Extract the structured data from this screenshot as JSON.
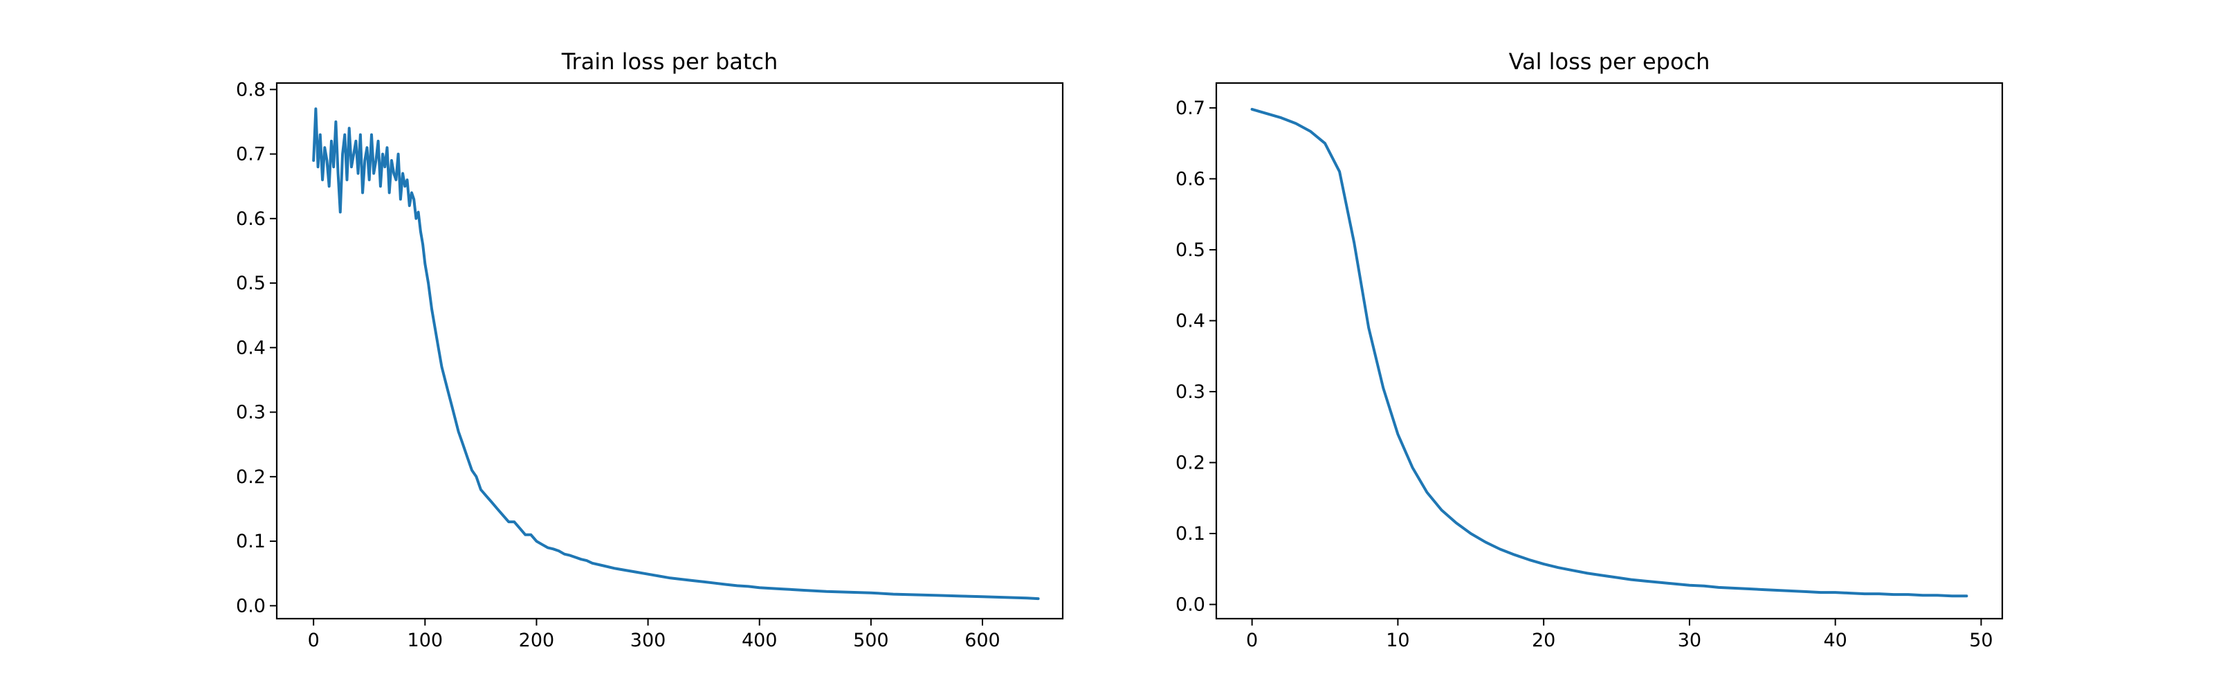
{
  "colors": {
    "series": "#1f77b4",
    "axes": "#000000",
    "background": "#ffffff"
  },
  "chart_data": [
    {
      "type": "line",
      "title": "Train loss per batch",
      "xlabel": "",
      "ylabel": "",
      "xlim": [
        -33,
        672
      ],
      "ylim": [
        -0.02,
        0.81
      ],
      "xticks": [
        0,
        100,
        200,
        300,
        400,
        500,
        600
      ],
      "yticks": [
        0.0,
        0.1,
        0.2,
        0.3,
        0.4,
        0.5,
        0.6,
        0.7,
        0.8
      ],
      "ytick_format": "1",
      "grid": false,
      "series": [
        {
          "x": [
            0,
            2,
            4,
            6,
            8,
            10,
            12,
            14,
            16,
            18,
            20,
            22,
            24,
            26,
            28,
            30,
            32,
            34,
            36,
            38,
            40,
            42,
            44,
            46,
            48,
            50,
            52,
            54,
            56,
            58,
            60,
            62,
            64,
            66,
            68,
            70,
            72,
            74,
            76,
            78,
            80,
            82,
            84,
            86,
            88,
            90,
            92,
            94,
            96,
            98,
            100,
            103,
            106,
            109,
            112,
            115,
            118,
            121,
            124,
            127,
            130,
            134,
            138,
            142,
            146,
            150,
            155,
            160,
            165,
            170,
            175,
            180,
            185,
            190,
            195,
            200,
            205,
            210,
            215,
            220,
            225,
            230,
            235,
            240,
            245,
            250,
            260,
            270,
            280,
            290,
            300,
            310,
            320,
            330,
            340,
            350,
            360,
            370,
            380,
            390,
            400,
            420,
            440,
            460,
            480,
            500,
            520,
            540,
            560,
            580,
            600,
            620,
            640,
            650
          ],
          "y": [
            0.69,
            0.77,
            0.68,
            0.73,
            0.66,
            0.71,
            0.69,
            0.65,
            0.72,
            0.68,
            0.75,
            0.67,
            0.61,
            0.7,
            0.73,
            0.66,
            0.74,
            0.68,
            0.7,
            0.72,
            0.67,
            0.73,
            0.64,
            0.69,
            0.71,
            0.66,
            0.73,
            0.67,
            0.69,
            0.72,
            0.65,
            0.7,
            0.68,
            0.71,
            0.64,
            0.69,
            0.67,
            0.66,
            0.7,
            0.63,
            0.67,
            0.65,
            0.66,
            0.62,
            0.64,
            0.63,
            0.6,
            0.61,
            0.58,
            0.56,
            0.53,
            0.5,
            0.46,
            0.43,
            0.4,
            0.37,
            0.35,
            0.33,
            0.31,
            0.29,
            0.27,
            0.25,
            0.23,
            0.21,
            0.2,
            0.18,
            0.17,
            0.16,
            0.15,
            0.14,
            0.13,
            0.13,
            0.12,
            0.11,
            0.11,
            0.1,
            0.095,
            0.09,
            0.088,
            0.085,
            0.08,
            0.078,
            0.075,
            0.072,
            0.07,
            0.066,
            0.062,
            0.058,
            0.055,
            0.052,
            0.049,
            0.046,
            0.043,
            0.041,
            0.039,
            0.037,
            0.035,
            0.033,
            0.031,
            0.03,
            0.028,
            0.026,
            0.024,
            0.022,
            0.021,
            0.02,
            0.018,
            0.017,
            0.016,
            0.015,
            0.014,
            0.013,
            0.012,
            0.011
          ]
        }
      ]
    },
    {
      "type": "line",
      "title": "Val loss per epoch",
      "xlabel": "",
      "ylabel": "",
      "xlim": [
        -2.45,
        51.45
      ],
      "ylim": [
        -0.02,
        0.735
      ],
      "xticks": [
        0,
        10,
        20,
        30,
        40,
        50
      ],
      "yticks": [
        0.0,
        0.1,
        0.2,
        0.3,
        0.4,
        0.5,
        0.6,
        0.7
      ],
      "ytick_format": "1",
      "grid": false,
      "series": [
        {
          "x": [
            0,
            1,
            2,
            3,
            4,
            5,
            6,
            7,
            8,
            9,
            10,
            11,
            12,
            13,
            14,
            15,
            16,
            17,
            18,
            19,
            20,
            21,
            22,
            23,
            24,
            25,
            26,
            27,
            28,
            29,
            30,
            31,
            32,
            33,
            34,
            35,
            36,
            37,
            38,
            39,
            40,
            41,
            42,
            43,
            44,
            45,
            46,
            47,
            48,
            49
          ],
          "y": [
            0.698,
            0.692,
            0.686,
            0.678,
            0.667,
            0.65,
            0.61,
            0.51,
            0.39,
            0.305,
            0.24,
            0.193,
            0.158,
            0.133,
            0.115,
            0.1,
            0.088,
            0.078,
            0.07,
            0.063,
            0.057,
            0.052,
            0.048,
            0.044,
            0.041,
            0.038,
            0.035,
            0.033,
            0.031,
            0.029,
            0.027,
            0.026,
            0.024,
            0.023,
            0.022,
            0.021,
            0.02,
            0.019,
            0.018,
            0.017,
            0.017,
            0.016,
            0.015,
            0.015,
            0.014,
            0.014,
            0.013,
            0.013,
            0.012,
            0.012
          ]
        }
      ]
    }
  ]
}
